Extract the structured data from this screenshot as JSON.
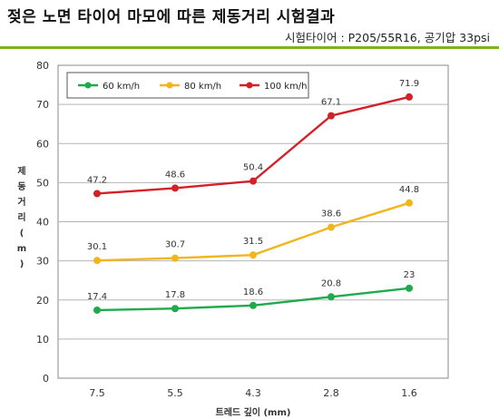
{
  "header": {
    "title": "젖은 노면 타이어 마모에 따른 제동거리 시험결과",
    "subtitle": "시험타이어 : P205/55R16, 공기압 33psi"
  },
  "chart_data": {
    "type": "line",
    "categories": [
      "7.5",
      "5.5",
      "4.3",
      "2.8",
      "1.6"
    ],
    "series": [
      {
        "name": "60 km/h",
        "color": "#1faa4b",
        "values": [
          17.4,
          17.8,
          18.6,
          20.8,
          23
        ]
      },
      {
        "name": "80 km/h",
        "color": "#f2b51c",
        "values": [
          30.1,
          30.7,
          31.5,
          38.6,
          44.8
        ]
      },
      {
        "name": "100 km/h",
        "color": "#d42027",
        "values": [
          47.2,
          48.6,
          50.4,
          67.1,
          71.9
        ]
      }
    ],
    "data_labels": [
      [
        "17.4",
        "17.8",
        "18.6",
        "20.8",
        "23"
      ],
      [
        "30.1",
        "30.7",
        "31.5",
        "38.6",
        "44.8"
      ],
      [
        "47.2",
        "48.6",
        "50.4",
        "67.1",
        "71.9"
      ]
    ],
    "xlabel": "트레드 깊이 (mm)",
    "ylabel_chars": [
      "제",
      "동",
      "거",
      "리",
      "(",
      "m",
      ")"
    ],
    "ylim": [
      0,
      80
    ],
    "yticks": [
      "0",
      "10",
      "20",
      "30",
      "40",
      "50",
      "60",
      "70",
      "80"
    ],
    "grid": "horizontal",
    "legend_position": "top-left"
  }
}
